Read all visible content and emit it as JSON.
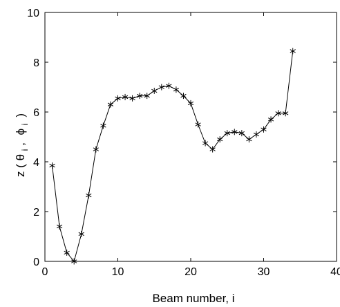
{
  "chart_data": {
    "type": "line",
    "title": "",
    "xlabel": "Beam number, i",
    "ylabel": {
      "prefix": "z (",
      "theta": "θ",
      "sub_i_1": "i",
      "sep": ",",
      "phi": "ϕ",
      "sub_i_2": "i",
      "suffix": ")"
    },
    "xlim": [
      0,
      40
    ],
    "ylim": [
      0,
      10
    ],
    "xticks": [
      "0",
      "10",
      "20",
      "30",
      "40"
    ],
    "yticks": [
      "0",
      "2",
      "4",
      "6",
      "8",
      "10"
    ],
    "grid": false,
    "legend": "none",
    "marker": "asterisk",
    "line_color": "#000000",
    "series": [
      {
        "x": [
          1,
          2,
          3,
          4,
          5,
          6,
          7,
          8,
          9,
          10,
          11,
          12,
          13,
          14,
          15,
          16,
          17,
          18,
          19,
          20,
          21,
          22,
          23,
          24,
          25,
          26,
          27,
          28,
          29,
          30,
          31,
          32,
          33,
          34
        ],
        "y": [
          3.85,
          1.4,
          0.35,
          0.0,
          1.1,
          2.65,
          4.5,
          5.45,
          6.3,
          6.55,
          6.6,
          6.55,
          6.65,
          6.65,
          6.85,
          7.0,
          7.05,
          6.9,
          6.65,
          6.35,
          5.5,
          4.75,
          4.5,
          4.9,
          5.15,
          5.2,
          5.15,
          4.9,
          5.1,
          5.3,
          5.7,
          5.95,
          5.95,
          8.45
        ]
      }
    ]
  }
}
